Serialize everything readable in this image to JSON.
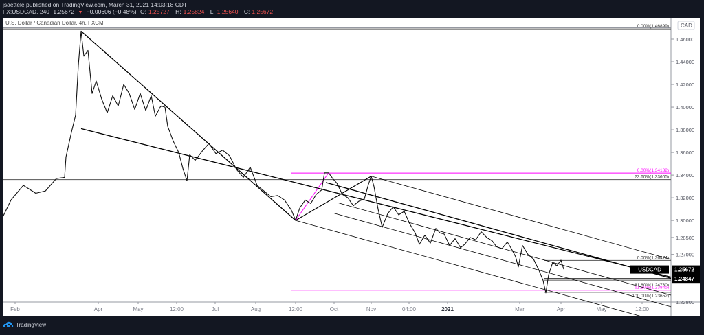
{
  "header": {
    "line1": "jsaettele published on TradingView.com, March 31, 2021 14:03:18 CDT",
    "symbol": "FX:USDCAD, 240",
    "last": "1.25672",
    "change": "−0.00606 (−0.48%)",
    "o_label": "O:",
    "o": "1.25727",
    "h_label": "H:",
    "h": "1.25824",
    "l_label": "L:",
    "l": "1.25640",
    "c_label": "C:",
    "c": "1.25672"
  },
  "chart_title": "U.S. Dollar / Canadian Dollar, 4h, FXCM",
  "footer": {
    "brand": "TradingView",
    "logo_icon": "tradingview-cloud-icon"
  },
  "colors": {
    "background": "#131722",
    "chart_bg": "#ffffff",
    "fib_magenta": "#ff00ff",
    "price_down": "#ef5350",
    "line": "#000000"
  },
  "chart_data": {
    "type": "line",
    "title": "U.S. Dollar / Canadian Dollar, 4h, FXCM",
    "symbol": "USDCAD",
    "currency_label": "CAD",
    "xlabel": "",
    "ylabel": "",
    "ylim": [
      1.218,
      1.482
    ],
    "y_ticks": [
      "1.48000",
      "1.46000",
      "1.44000",
      "1.42000",
      "1.40000",
      "1.38000",
      "1.36000",
      "1.34000",
      "1.32000",
      "1.30000",
      "1.28500",
      "1.27000",
      "1.22800"
    ],
    "x_ticks": [
      "Feb",
      "Apr",
      "May",
      "12:00",
      "Jul",
      "Aug",
      "12:00",
      "Oct",
      "Nov",
      "04:00",
      "2021",
      "Mar",
      "Apr",
      "May",
      "12:00"
    ],
    "x_ticks_bold": [
      "2021"
    ],
    "current_price_label": {
      "symbol": "USDCAD",
      "price": "1.25672",
      "countdown": "01:56:43"
    },
    "alert_price_label": "1.24847",
    "fib_levels": [
      {
        "label": "0.00%(1.46899)",
        "price": 1.46899,
        "color": "#000000"
      },
      {
        "label": "0.00%(1.34182)",
        "price": 1.34182,
        "color": "#ff00ff"
      },
      {
        "label": "23.60%(1.33605)",
        "price": 1.33605,
        "color": "#000000"
      },
      {
        "label": "0.00%(1.26474)",
        "price": 1.26474,
        "color": "#000000"
      },
      {
        "label": "61.80%(1.24730)",
        "price": 1.2473,
        "color": "#000000"
      },
      {
        "label": "61.80%(1.23845)",
        "price": 1.23845,
        "color": "#ff00ff"
      },
      {
        "label": "100.00%(1.23652)",
        "price": 1.23652,
        "color": "#000000"
      }
    ],
    "price_path_approx": [
      [
        0,
        1.303
      ],
      [
        12,
        1.318
      ],
      [
        30,
        1.331
      ],
      [
        48,
        1.324
      ],
      [
        62,
        1.326
      ],
      [
        78,
        1.337
      ],
      [
        90,
        1.338
      ],
      [
        92,
        1.356
      ],
      [
        100,
        1.378
      ],
      [
        106,
        1.393
      ],
      [
        110,
        1.437
      ],
      [
        114,
        1.467
      ],
      [
        118,
        1.445
      ],
      [
        124,
        1.45
      ],
      [
        130,
        1.412
      ],
      [
        136,
        1.423
      ],
      [
        144,
        1.407
      ],
      [
        152,
        1.395
      ],
      [
        160,
        1.41
      ],
      [
        168,
        1.401
      ],
      [
        176,
        1.42
      ],
      [
        184,
        1.412
      ],
      [
        192,
        1.398
      ],
      [
        200,
        1.412
      ],
      [
        208,
        1.397
      ],
      [
        216,
        1.41
      ],
      [
        222,
        1.392
      ],
      [
        230,
        1.401
      ],
      [
        236,
        1.4
      ],
      [
        240,
        1.383
      ],
      [
        248,
        1.37
      ],
      [
        256,
        1.36
      ],
      [
        262,
        1.346
      ],
      [
        268,
        1.335
      ],
      [
        272,
        1.358
      ],
      [
        280,
        1.353
      ],
      [
        290,
        1.361
      ],
      [
        300,
        1.368
      ],
      [
        310,
        1.359
      ],
      [
        320,
        1.362
      ],
      [
        330,
        1.357
      ],
      [
        340,
        1.345
      ],
      [
        350,
        1.338
      ],
      [
        360,
        1.347
      ],
      [
        370,
        1.331
      ],
      [
        380,
        1.326
      ],
      [
        390,
        1.321
      ],
      [
        400,
        1.322
      ],
      [
        410,
        1.318
      ],
      [
        420,
        1.309
      ],
      [
        426,
        1.3
      ],
      [
        432,
        1.311
      ],
      [
        440,
        1.318
      ],
      [
        448,
        1.315
      ],
      [
        456,
        1.323
      ],
      [
        464,
        1.327
      ],
      [
        468,
        1.342
      ],
      [
        474,
        1.342
      ],
      [
        480,
        1.337
      ],
      [
        486,
        1.333
      ],
      [
        494,
        1.323
      ],
      [
        502,
        1.32
      ],
      [
        510,
        1.313
      ],
      [
        518,
        1.317
      ],
      [
        526,
        1.319
      ],
      [
        532,
        1.332
      ],
      [
        536,
        1.339
      ],
      [
        540,
        1.33
      ],
      [
        546,
        1.31
      ],
      [
        552,
        1.294
      ],
      [
        560,
        1.306
      ],
      [
        568,
        1.312
      ],
      [
        576,
        1.305
      ],
      [
        584,
        1.308
      ],
      [
        592,
        1.297
      ],
      [
        600,
        1.289
      ],
      [
        606,
        1.279
      ],
      [
        614,
        1.287
      ],
      [
        622,
        1.28
      ],
      [
        630,
        1.293
      ],
      [
        636,
        1.289
      ],
      [
        642,
        1.288
      ],
      [
        650,
        1.278
      ],
      [
        658,
        1.284
      ],
      [
        666,
        1.276
      ],
      [
        672,
        1.279
      ],
      [
        680,
        1.285
      ],
      [
        688,
        1.283
      ],
      [
        696,
        1.29
      ],
      [
        704,
        1.285
      ],
      [
        712,
        1.282
      ],
      [
        718,
        1.277
      ],
      [
        726,
        1.275
      ],
      [
        734,
        1.281
      ],
      [
        740,
        1.275
      ],
      [
        746,
        1.268
      ],
      [
        750,
        1.259
      ],
      [
        756,
        1.278
      ],
      [
        764,
        1.27
      ],
      [
        772,
        1.266
      ],
      [
        780,
        1.256
      ],
      [
        786,
        1.247
      ],
      [
        790,
        1.236
      ],
      [
        794,
        1.252
      ],
      [
        800,
        1.263
      ],
      [
        806,
        1.26
      ],
      [
        812,
        1.265
      ],
      [
        816,
        1.257
      ]
    ],
    "trendlines": [
      {
        "name": "descending-trendline",
        "from": [
          114,
          1.467
        ],
        "to": [
          426,
          1.3
        ]
      },
      {
        "name": "lower-wedge-line",
        "from": [
          114,
          1.381
        ],
        "to": [
          972,
          1.25
        ]
      },
      {
        "name": "pitchfork-handle-a",
        "from": [
          426,
          1.3
        ],
        "to": [
          474,
          1.342
        ]
      },
      {
        "name": "pitchfork-handle-b",
        "from": [
          426,
          1.3
        ],
        "to": [
          536,
          1.339
        ]
      }
    ]
  }
}
